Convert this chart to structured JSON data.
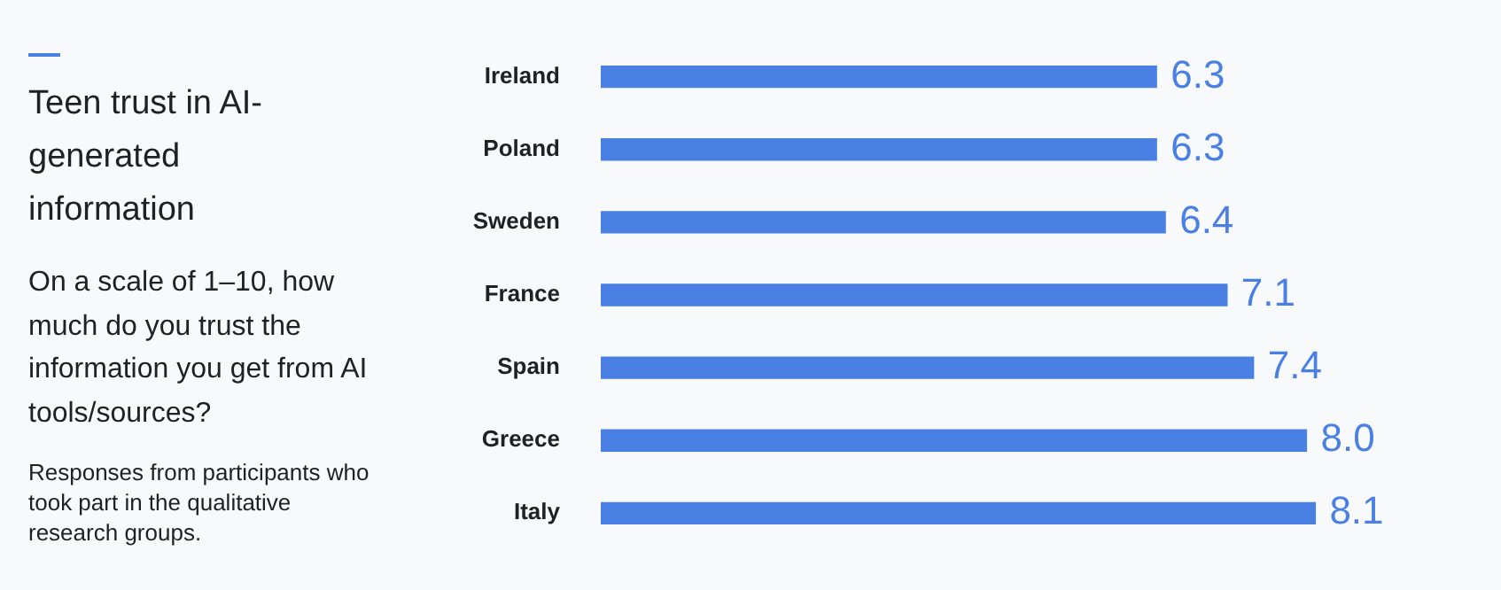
{
  "chart_data": {
    "type": "bar",
    "orientation": "horizontal",
    "title": "Teen trust in AI-generated information",
    "subtitle": "On a scale of 1–10, how much do you trust the information you get from AI tools/sources?",
    "annotations": [
      "Responses from participants who took part in the qualitative research groups."
    ],
    "categories": [
      "Ireland",
      "Poland",
      "Sweden",
      "France",
      "Spain",
      "Greece",
      "Italy"
    ],
    "values": [
      6.3,
      6.3,
      6.4,
      7.1,
      7.4,
      8.0,
      8.1
    ],
    "value_labels": [
      "6.3",
      "6.3",
      "6.4",
      "7.1",
      "7.4",
      "8.0",
      "8.1"
    ],
    "color": "#4a80e3",
    "tick_labels": "y"
  }
}
